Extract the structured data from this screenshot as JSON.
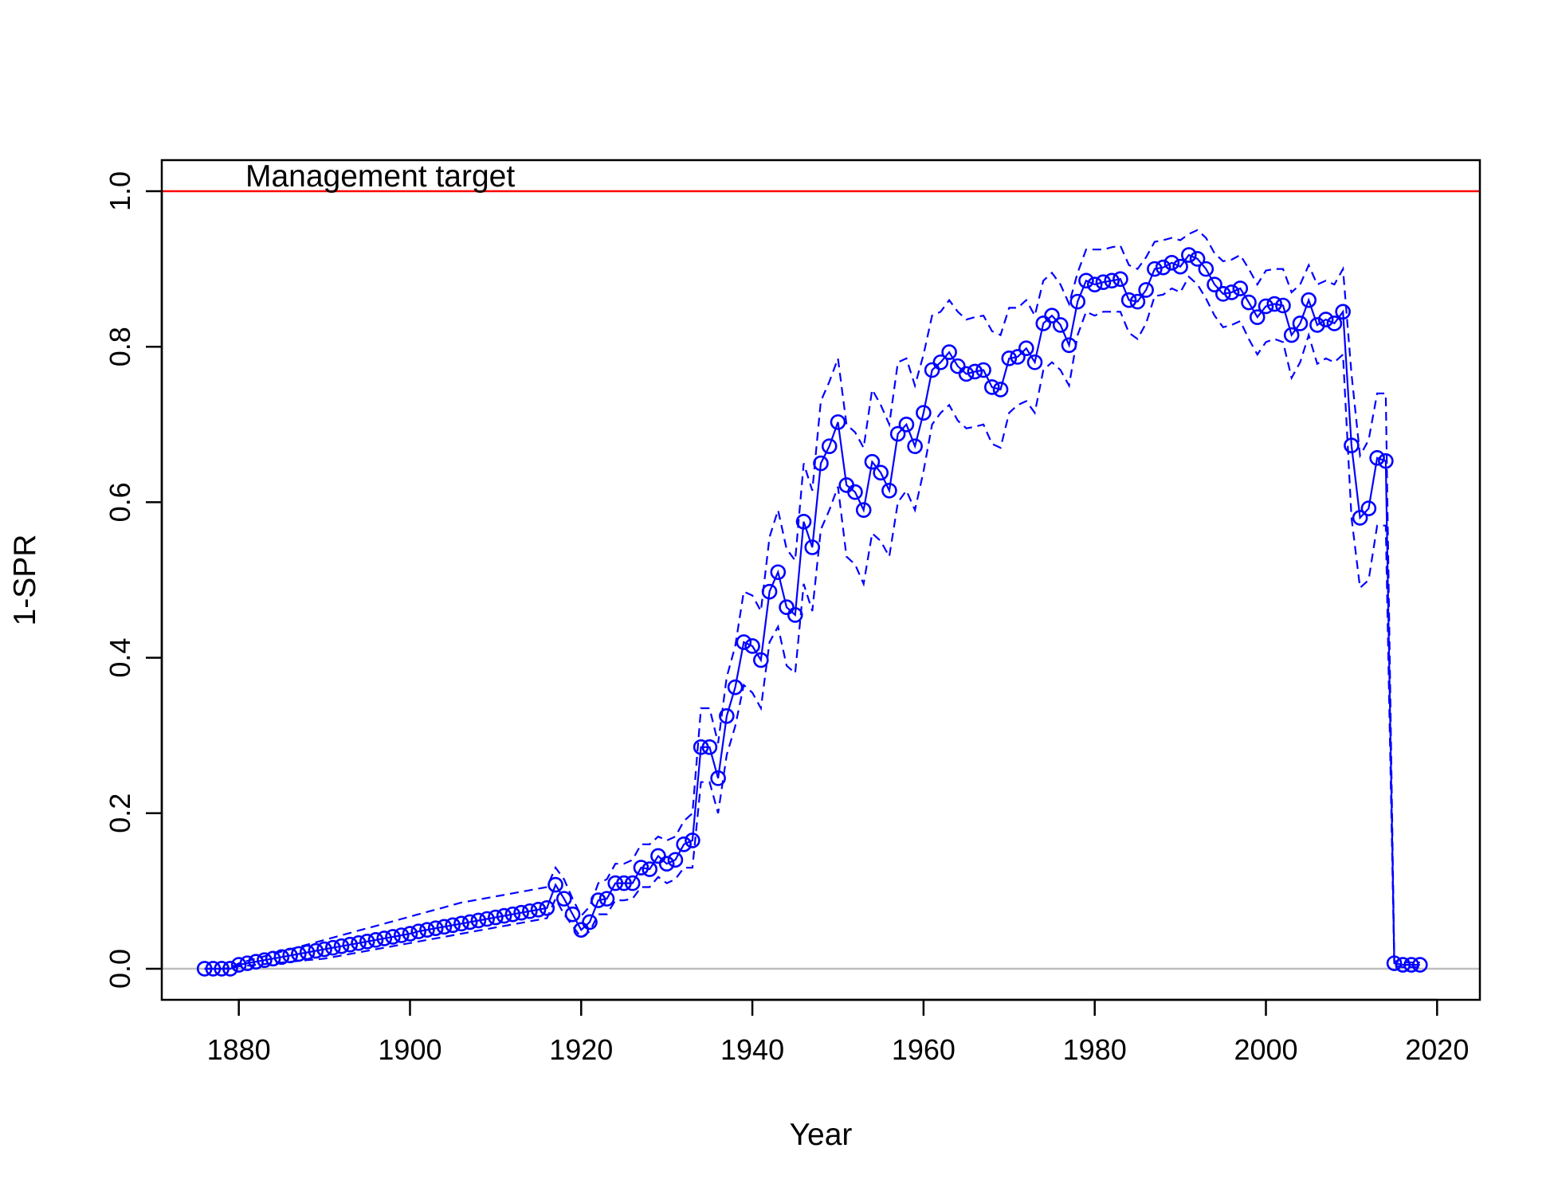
{
  "chart_data": {
    "type": "line",
    "xlabel": "Year",
    "ylabel": "1-SPR",
    "xlim": [
      1871,
      2025
    ],
    "ylim": [
      -0.04,
      1.04
    ],
    "x_ticks": [
      1880,
      1900,
      1920,
      1940,
      1960,
      1980,
      2000,
      2020
    ],
    "y_ticks": [
      0.0,
      0.2,
      0.4,
      0.6,
      0.8,
      1.0
    ],
    "y_tick_labels": [
      "0.0",
      "0.2",
      "0.4",
      "0.6",
      "0.8",
      "1.0"
    ],
    "grid": false,
    "reference_lines": [
      {
        "label": "Management target",
        "y": 1.0,
        "color": "#ff0000"
      },
      {
        "label": "",
        "y": 0.0,
        "color": "#bebebe"
      }
    ],
    "series_color": "#0000ff",
    "series": [
      {
        "name": "",
        "x": [
          1876,
          1877,
          1878,
          1879,
          1880,
          1881,
          1882,
          1883,
          1884,
          1885,
          1886,
          1887,
          1888,
          1889,
          1890,
          1891,
          1892,
          1893,
          1894,
          1895,
          1896,
          1897,
          1898,
          1899,
          1900,
          1901,
          1902,
          1903,
          1904,
          1905,
          1906,
          1907,
          1908,
          1909,
          1910,
          1911,
          1912,
          1913,
          1914,
          1915,
          1916,
          1917,
          1918,
          1919,
          1920,
          1921,
          1922,
          1923,
          1924,
          1925,
          1926,
          1927,
          1928,
          1929,
          1930,
          1931,
          1932,
          1933,
          1934,
          1935,
          1936,
          1937,
          1938,
          1939,
          1940,
          1941,
          1942,
          1943,
          1944,
          1945,
          1946,
          1947,
          1948,
          1949,
          1950,
          1951,
          1952,
          1953,
          1954,
          1955,
          1956,
          1957,
          1958,
          1959,
          1960,
          1961,
          1962,
          1963,
          1964,
          1965,
          1966,
          1967,
          1968,
          1969,
          1970,
          1971,
          1972,
          1973,
          1974,
          1975,
          1976,
          1977,
          1978,
          1979,
          1980,
          1981,
          1982,
          1983,
          1984,
          1985,
          1986,
          1987,
          1988,
          1989,
          1990,
          1991,
          1992,
          1993,
          1994,
          1995,
          1996,
          1997,
          1998,
          1999,
          2000,
          2001,
          2002,
          2003,
          2004,
          2005,
          2006,
          2007,
          2008,
          2009,
          2010,
          2011,
          2012,
          2013,
          2014,
          2015,
          2016,
          2017,
          2018
        ],
        "y": [
          0.0,
          0.0,
          0.0,
          0.0,
          0.005,
          0.007,
          0.009,
          0.011,
          0.013,
          0.015,
          0.017,
          0.019,
          0.021,
          0.023,
          0.025,
          0.027,
          0.029,
          0.031,
          0.033,
          0.035,
          0.037,
          0.039,
          0.041,
          0.043,
          0.045,
          0.048,
          0.05,
          0.052,
          0.054,
          0.056,
          0.058,
          0.06,
          0.062,
          0.064,
          0.066,
          0.068,
          0.07,
          0.072,
          0.074,
          0.076,
          0.078,
          0.108,
          0.09,
          0.07,
          0.05,
          0.06,
          0.088,
          0.09,
          0.11,
          0.11,
          0.11,
          0.13,
          0.128,
          0.145,
          0.135,
          0.14,
          0.16,
          0.165,
          0.285,
          0.285,
          0.245,
          0.325,
          0.362,
          0.42,
          0.415,
          0.397,
          0.485,
          0.51,
          0.465,
          0.455,
          0.575,
          0.542,
          0.65,
          0.672,
          0.703,
          0.622,
          0.613,
          0.59,
          0.652,
          0.638,
          0.615,
          0.688,
          0.7,
          0.672,
          0.715,
          0.77,
          0.78,
          0.793,
          0.775,
          0.765,
          0.768,
          0.77,
          0.748,
          0.745,
          0.785,
          0.787,
          0.798,
          0.78,
          0.83,
          0.84,
          0.828,
          0.802,
          0.858,
          0.885,
          0.88,
          0.883,
          0.885,
          0.887,
          0.86,
          0.858,
          0.873,
          0.9,
          0.902,
          0.908,
          0.903,
          0.918,
          0.913,
          0.9,
          0.88,
          0.868,
          0.87,
          0.875,
          0.857,
          0.838,
          0.852,
          0.855,
          0.853,
          0.815,
          0.83,
          0.86,
          0.828,
          0.835,
          0.83,
          0.845,
          0.673,
          0.58,
          0.592,
          0.657,
          0.653,
          0.007,
          0.005,
          0.005,
          0.005
        ]
      }
    ],
    "interval_upper": [
      0.0,
      0.0,
      0.0,
      0.001,
      0.007,
      0.01,
      0.013,
      0.016,
      0.019,
      0.022,
      0.025,
      0.028,
      0.031,
      0.034,
      0.037,
      0.04,
      0.043,
      0.046,
      0.049,
      0.052,
      0.055,
      0.058,
      0.061,
      0.064,
      0.067,
      0.07,
      0.073,
      0.076,
      0.079,
      0.082,
      0.085,
      0.087,
      0.089,
      0.091,
      0.093,
      0.095,
      0.097,
      0.099,
      0.101,
      0.103,
      0.105,
      0.13,
      0.115,
      0.09,
      0.068,
      0.08,
      0.11,
      0.115,
      0.135,
      0.135,
      0.14,
      0.16,
      0.16,
      0.17,
      0.165,
      0.17,
      0.19,
      0.2,
      0.335,
      0.335,
      0.29,
      0.375,
      0.415,
      0.485,
      0.48,
      0.46,
      0.555,
      0.59,
      0.54,
      0.525,
      0.65,
      0.615,
      0.73,
      0.755,
      0.785,
      0.7,
      0.69,
      0.67,
      0.745,
      0.725,
      0.7,
      0.78,
      0.785,
      0.75,
      0.79,
      0.84,
      0.845,
      0.86,
      0.845,
      0.835,
      0.838,
      0.84,
      0.82,
      0.815,
      0.85,
      0.85,
      0.86,
      0.84,
      0.885,
      0.895,
      0.88,
      0.855,
      0.895,
      0.925,
      0.925,
      0.925,
      0.928,
      0.93,
      0.905,
      0.9,
      0.915,
      0.935,
      0.937,
      0.94,
      0.937,
      0.945,
      0.95,
      0.94,
      0.92,
      0.91,
      0.912,
      0.918,
      0.9,
      0.88,
      0.898,
      0.9,
      0.9,
      0.87,
      0.88,
      0.905,
      0.88,
      0.885,
      0.88,
      0.9,
      0.765,
      0.66,
      0.68,
      0.74,
      0.74,
      0.01,
      0.008,
      0.008,
      0.008
    ],
    "interval_lower": [
      0.0,
      0.0,
      0.0,
      0.0,
      0.003,
      0.004,
      0.005,
      0.006,
      0.007,
      0.008,
      0.009,
      0.01,
      0.011,
      0.012,
      0.013,
      0.015,
      0.017,
      0.019,
      0.021,
      0.023,
      0.025,
      0.027,
      0.029,
      0.031,
      0.033,
      0.035,
      0.037,
      0.039,
      0.041,
      0.043,
      0.045,
      0.047,
      0.049,
      0.051,
      0.053,
      0.055,
      0.057,
      0.059,
      0.061,
      0.063,
      0.065,
      0.09,
      0.07,
      0.055,
      0.04,
      0.048,
      0.07,
      0.07,
      0.088,
      0.088,
      0.09,
      0.105,
      0.105,
      0.118,
      0.11,
      0.115,
      0.13,
      0.13,
      0.24,
      0.24,
      0.2,
      0.275,
      0.312,
      0.365,
      0.355,
      0.335,
      0.42,
      0.44,
      0.39,
      0.38,
      0.495,
      0.46,
      0.565,
      0.59,
      0.62,
      0.53,
      0.52,
      0.495,
      0.56,
      0.55,
      0.53,
      0.6,
      0.615,
      0.59,
      0.64,
      0.7,
      0.715,
      0.725,
      0.705,
      0.695,
      0.697,
      0.7,
      0.675,
      0.67,
      0.715,
      0.725,
      0.73,
      0.715,
      0.77,
      0.78,
      0.77,
      0.75,
      0.815,
      0.845,
      0.84,
      0.845,
      0.845,
      0.845,
      0.818,
      0.81,
      0.83,
      0.865,
      0.867,
      0.875,
      0.87,
      0.89,
      0.88,
      0.862,
      0.84,
      0.825,
      0.828,
      0.833,
      0.81,
      0.79,
      0.806,
      0.81,
      0.806,
      0.76,
      0.78,
      0.815,
      0.778,
      0.785,
      0.78,
      0.79,
      0.58,
      0.49,
      0.5,
      0.57,
      0.57,
      0.004,
      0.002,
      0.002,
      0.002
    ]
  }
}
